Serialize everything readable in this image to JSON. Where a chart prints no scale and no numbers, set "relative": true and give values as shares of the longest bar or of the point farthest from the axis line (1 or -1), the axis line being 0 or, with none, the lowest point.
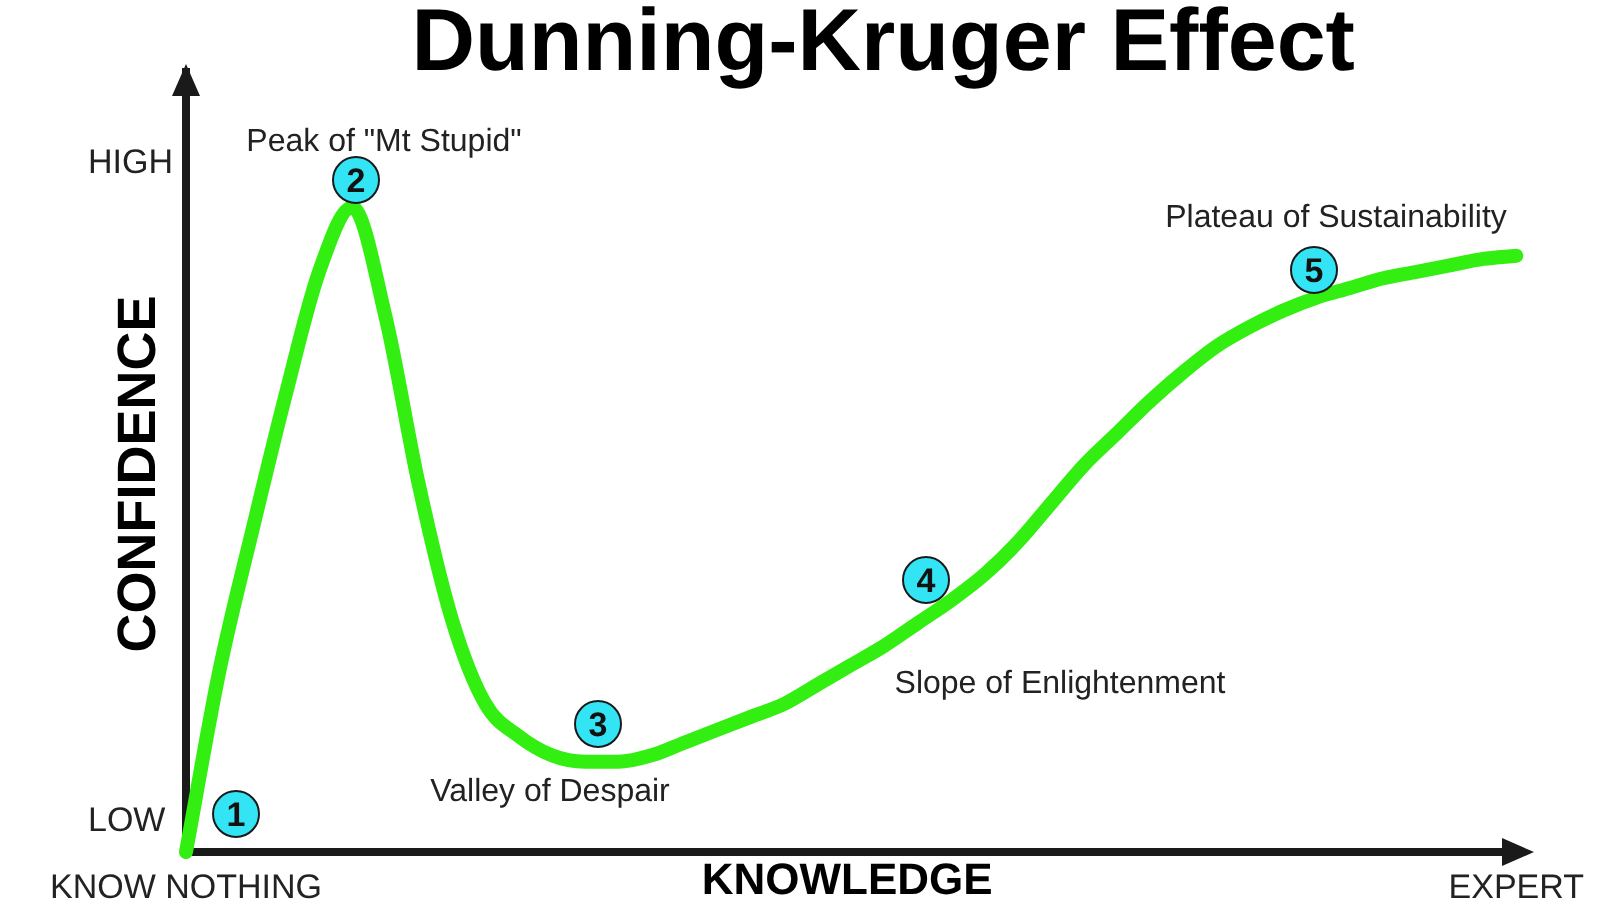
{
  "chart_data": {
    "type": "line",
    "title": "Dunning-Kruger Effect",
    "xlabel": "KNOWLEDGE",
    "ylabel": "CONFIDENCE",
    "categories": [
      "KNOW NOTHING",
      null,
      null,
      null,
      null,
      null,
      null,
      null,
      null,
      null,
      null,
      null,
      null,
      null,
      null,
      null,
      null,
      null,
      null,
      null,
      null,
      null,
      null,
      null,
      null,
      null,
      null,
      null,
      null,
      null,
      null,
      null,
      null,
      null,
      null,
      null,
      null,
      null,
      null,
      null,
      "EXPERT"
    ],
    "relative": true,
    "series": [
      {
        "color": "#33ee11",
        "values": [
          0,
          0.28,
          0.5,
          0.71,
          0.9,
          1,
          0.83,
          0.57,
          0.36,
          0.23,
          0.18,
          0.15,
          0.14,
          0.14,
          0.15,
          0.17,
          0.19,
          0.21,
          0.23,
          0.26,
          0.29,
          0.32,
          0.355,
          0.39,
          0.43,
          0.48,
          0.54,
          0.6,
          0.65,
          0.7,
          0.745,
          0.785,
          0.815,
          0.84,
          0.86,
          0.875,
          0.89,
          0.9,
          0.91,
          0.92,
          0.925
        ]
      }
    ],
    "grid": false,
    "legend": false,
    "marker": "none",
    "annotations": [
      "HIGH",
      "LOW",
      "Peak of \"Mt Stupid\"",
      "Valley of Despair",
      "Slope of Enlightenment",
      "Plateau of Sustainability",
      "1",
      "2",
      "3",
      "4",
      "5"
    ]
  }
}
